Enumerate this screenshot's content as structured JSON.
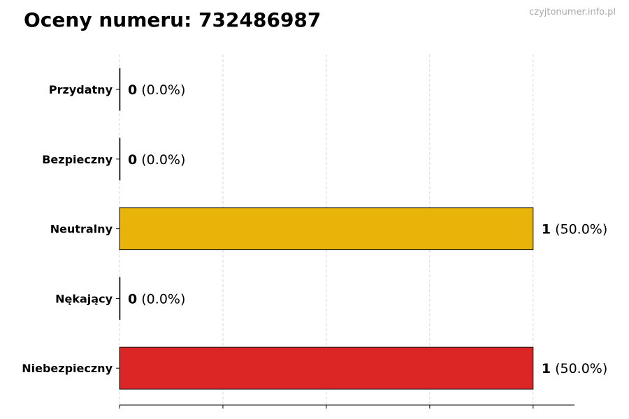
{
  "title": "Oceny numeru: 732486987",
  "watermark": "czyjtonumer.info.pl",
  "chart_data": {
    "type": "bar",
    "orientation": "horizontal",
    "categories": [
      "Przydatny",
      "Bezpieczny",
      "Neutralny",
      "Nękający",
      "Niebezpieczny"
    ],
    "values": [
      0,
      0,
      1,
      0,
      1
    ],
    "percent_labels": [
      "(0.0%)",
      "(0.0%)",
      "(50.0%)",
      "(0.0%)",
      "(50.0%)"
    ],
    "colors": [
      "#2e9d4a",
      "#2e9d4a",
      "#e8b40a",
      "#e05a2a",
      "#dc2626"
    ],
    "xlim": [
      0,
      1.1
    ],
    "xticks": [
      0,
      0.25,
      0.5,
      0.75,
      1
    ],
    "grid": "x-dashed",
    "xlabel": "",
    "ylabel": ""
  }
}
